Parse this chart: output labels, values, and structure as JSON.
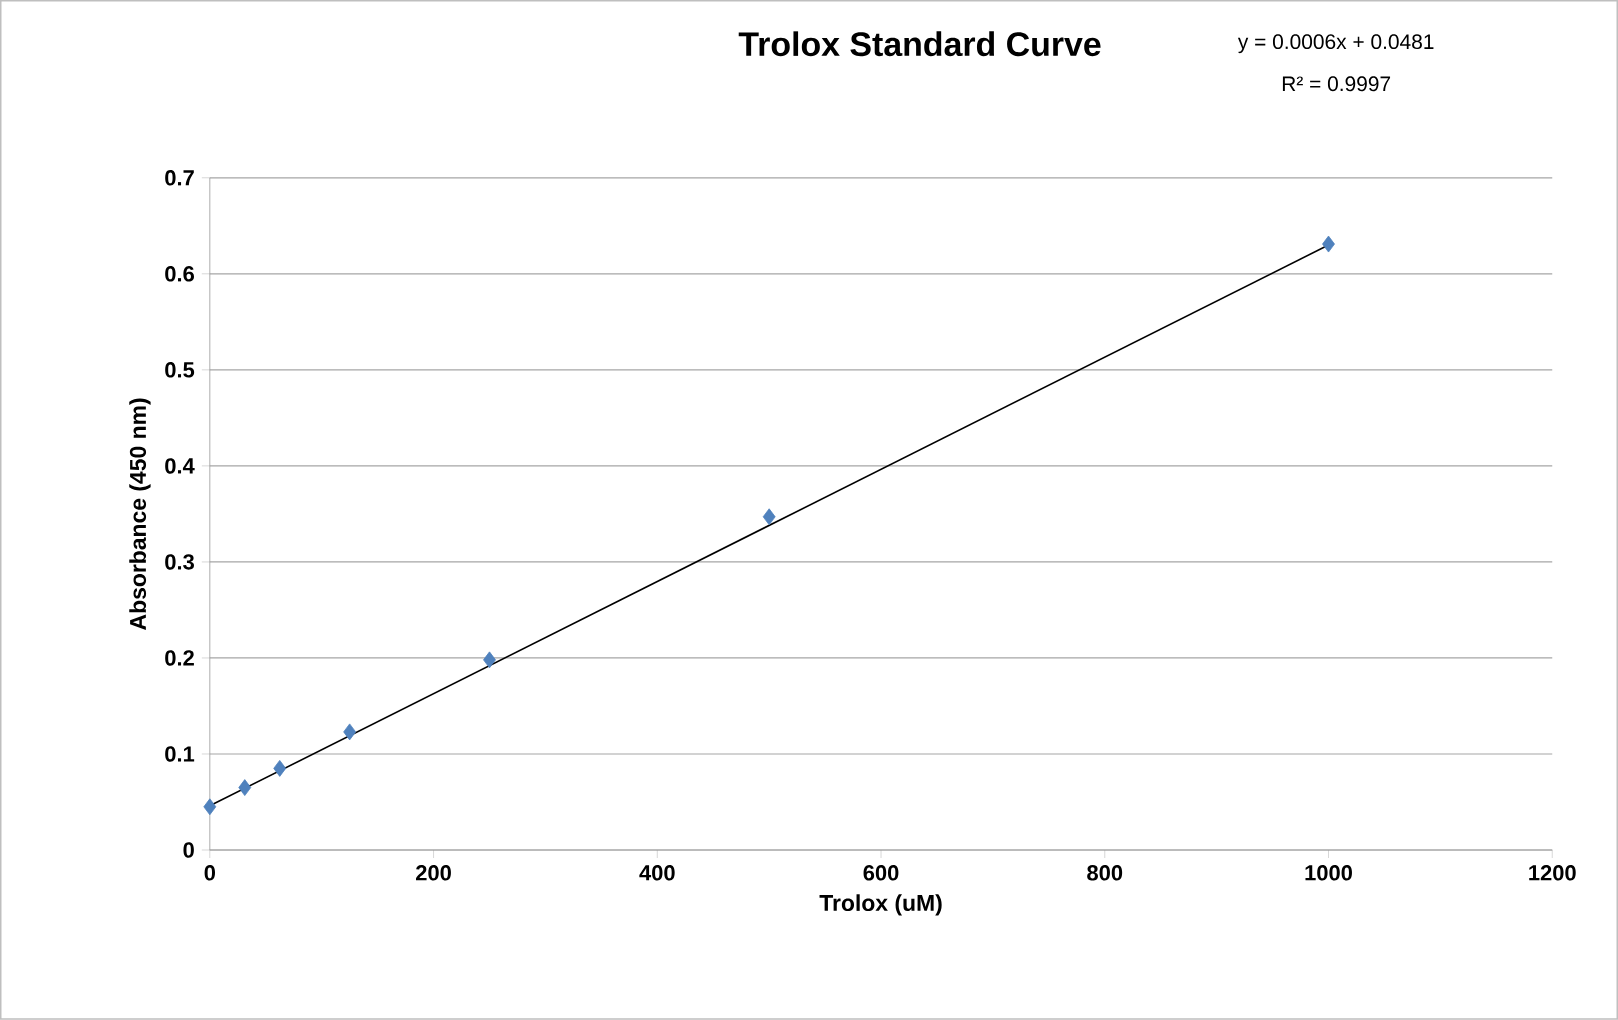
{
  "chart_data": {
    "type": "scatter",
    "title": "Trolox Standard Curve",
    "xlabel": "Trolox (uM)",
    "ylabel": "Absorbance (450 nm)",
    "annotations": [
      "y = 0.0006x + 0.0481",
      "R² = 0.9997"
    ],
    "series": [
      {
        "color": "#4f81bd",
        "x": [
          0,
          31.25,
          62.5,
          125,
          250,
          500,
          1000
        ],
        "values": [
          0.045,
          0.065,
          0.085,
          0.123,
          0.198,
          0.347,
          0.631
        ]
      },
      {
        "type": "line",
        "marker": "none",
        "color": "#000000",
        "x": [
          0,
          1000
        ],
        "values": [
          0.046,
          0.63
        ]
      }
    ],
    "xlim": [
      0,
      1200
    ],
    "xticks": [
      0,
      200,
      400,
      600,
      800,
      1000,
      1200
    ],
    "ylim": [
      0,
      0.7
    ],
    "yticks": [
      0,
      0.1,
      0.2,
      0.3,
      0.4,
      0.5,
      0.6,
      0.7
    ],
    "grid": "y",
    "marker": "diamond"
  }
}
